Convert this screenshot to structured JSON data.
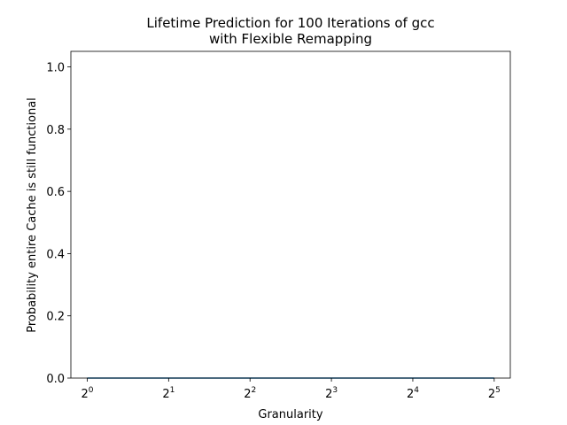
{
  "chart_data": {
    "type": "line",
    "title": [
      "Lifetime Prediction for 100 Iterations of gcc",
      "with Flexible Remapping"
    ],
    "xlabel": "Granularity",
    "ylabel": "Probability entire Cache is still functional",
    "x_scale": "log2",
    "xlim": [
      0.87,
      36.7
    ],
    "ylim": [
      0,
      1.05
    ],
    "x_ticks": [
      {
        "base": "2",
        "exp": "0",
        "value": 1
      },
      {
        "base": "2",
        "exp": "1",
        "value": 2
      },
      {
        "base": "2",
        "exp": "2",
        "value": 4
      },
      {
        "base": "2",
        "exp": "3",
        "value": 8
      },
      {
        "base": "2",
        "exp": "4",
        "value": 16
      },
      {
        "base": "2",
        "exp": "5",
        "value": 32
      }
    ],
    "y_ticks": [
      "0.0",
      "0.2",
      "0.4",
      "0.6",
      "0.8",
      "1.0"
    ],
    "grid": false,
    "series": [
      {
        "color": "#1f77b4",
        "x": [
          1,
          2,
          4,
          8,
          16,
          32
        ],
        "y": [
          0,
          0,
          0,
          0,
          0,
          0
        ]
      }
    ]
  }
}
